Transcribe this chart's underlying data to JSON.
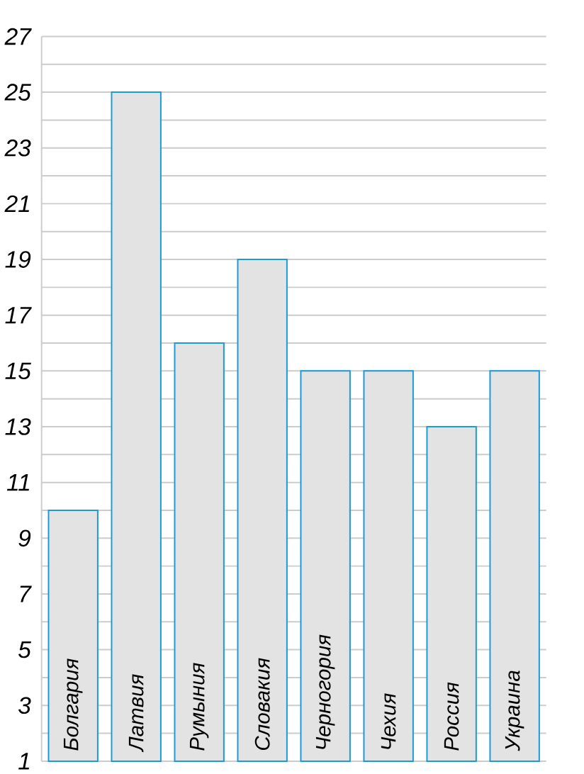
{
  "chart_data": {
    "type": "bar",
    "categories": [
      "Болгария",
      "Латвия",
      "Румыния",
      "Словакия",
      "Черногория",
      "Чехия",
      "Россия",
      "Украина"
    ],
    "values": [
      10,
      25,
      16,
      19,
      15,
      15,
      13,
      15
    ],
    "color": "#e3e3e3",
    "ylim": [
      1,
      27
    ],
    "yticks": [
      1,
      {
        "value": 2,
        "label": null
      },
      3,
      {
        "value": 4,
        "label": null
      },
      5,
      {
        "value": 6,
        "label": null
      },
      7,
      {
        "value": 8,
        "label": null
      },
      9,
      {
        "value": 10,
        "label": null
      },
      11,
      {
        "value": 12,
        "label": null
      },
      13,
      {
        "value": 14,
        "label": null
      },
      15,
      {
        "value": 16,
        "label": null
      },
      17,
      {
        "value": 18,
        "label": null
      },
      19,
      {
        "value": 20,
        "label": null
      },
      21,
      {
        "value": 22,
        "label": null
      },
      23,
      {
        "value": 24,
        "label": null
      },
      25,
      {
        "value": 26,
        "label": null
      },
      27
    ],
    "grid": "y"
  }
}
